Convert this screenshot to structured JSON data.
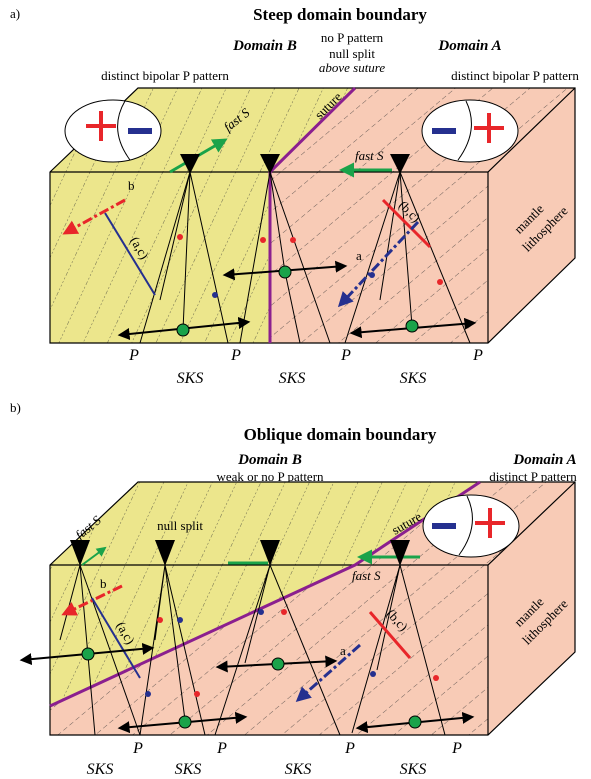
{
  "panels": [
    {
      "label": "a)",
      "title": "Steep domain boundary",
      "domain_b": "Domain B",
      "domain_a": "Domain A",
      "middle_notes": [
        "no P pattern",
        "null split",
        "above suture"
      ],
      "pattern_left": "distinct bipolar P pattern",
      "pattern_right": "distinct bipolar P pattern",
      "fast_s": [
        "fast S",
        "fast S"
      ],
      "suture": "suture",
      "axis_b": "b",
      "plane_left": "(a,c)",
      "plane_right": "(b,c)",
      "axis_a": "a",
      "side": [
        "mantle",
        "lithosphere"
      ],
      "p_labels": [
        "P",
        "P",
        "P",
        "P"
      ],
      "sks_labels": [
        "SKS",
        "SKS",
        "SKS"
      ]
    },
    {
      "label": "b)",
      "title": "Oblique domain boundary",
      "domain_b": "Domain B",
      "domain_a": "Domain A",
      "pattern_left": "weak or no P pattern",
      "pattern_right": "distinct P pattern",
      "fast_s": [
        "fast S",
        "fast S"
      ],
      "null_split": "null split",
      "suture": "suture",
      "axis_b": "b",
      "plane_left": "(a,c)",
      "plane_right": "(b,c)",
      "axis_a": "a",
      "side": [
        "mantle",
        "lithosphere"
      ],
      "p_labels": [
        "P",
        "P",
        "P",
        "P"
      ],
      "sks_labels": [
        "SKS",
        "SKS",
        "SKS",
        "SKS"
      ]
    }
  ]
}
